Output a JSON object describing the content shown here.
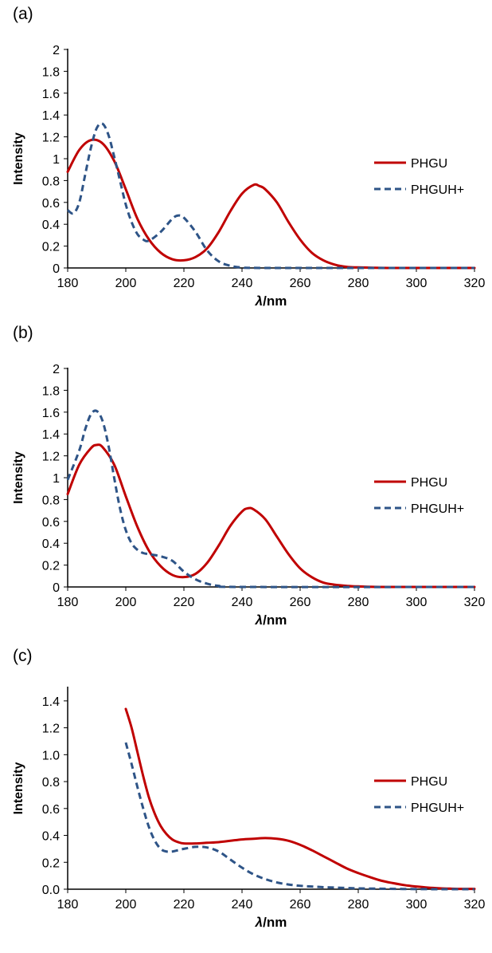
{
  "colors": {
    "phgu": "#c00000",
    "phguh": "#2e5487"
  },
  "chart_data": [
    {
      "panel_label": "(a)",
      "type": "line",
      "xlabel_italic": "λ",
      "xlabel_rest": "/nm",
      "ylabel": "Intensity",
      "xlim": [
        180,
        320
      ],
      "ylim": [
        0,
        2
      ],
      "xticks": [
        "180",
        "200",
        "220",
        "240",
        "260",
        "280",
        "300",
        "320"
      ],
      "yticks": [
        "0",
        "0.2",
        "0.4",
        "0.6",
        "0.8",
        "1",
        "1.2",
        "1.4",
        "1.6",
        "1.8",
        "2"
      ],
      "legend_position": "right",
      "series": [
        {
          "name": "PHGU",
          "style": "solid",
          "x": [
            180,
            184,
            188,
            192,
            196,
            200,
            204,
            208,
            212,
            216,
            220,
            224,
            228,
            232,
            236,
            240,
            244,
            246,
            248,
            252,
            256,
            260,
            264,
            268,
            272,
            276,
            280,
            290,
            300,
            320
          ],
          "y": [
            0.88,
            1.08,
            1.17,
            1.14,
            0.98,
            0.72,
            0.45,
            0.26,
            0.14,
            0.08,
            0.07,
            0.1,
            0.18,
            0.33,
            0.52,
            0.68,
            0.76,
            0.75,
            0.72,
            0.6,
            0.42,
            0.26,
            0.14,
            0.07,
            0.03,
            0.01,
            0.005,
            0,
            0,
            0
          ]
        },
        {
          "name": "PHGUH+",
          "style": "dashed",
          "x": [
            180,
            182,
            184,
            186,
            188,
            190,
            192,
            194,
            196,
            198,
            200,
            202,
            204,
            206,
            208,
            212,
            216,
            218,
            220,
            224,
            228,
            232,
            236,
            240,
            250,
            320
          ],
          "y": [
            0.53,
            0.5,
            0.6,
            0.85,
            1.1,
            1.28,
            1.32,
            1.22,
            1.02,
            0.8,
            0.58,
            0.42,
            0.31,
            0.26,
            0.25,
            0.33,
            0.45,
            0.48,
            0.46,
            0.33,
            0.16,
            0.06,
            0.02,
            0.005,
            0,
            0
          ]
        }
      ]
    },
    {
      "panel_label": "(b)",
      "type": "line",
      "xlabel_italic": "λ",
      "xlabel_rest": "/nm",
      "ylabel": "Intensity",
      "xlim": [
        180,
        320
      ],
      "ylim": [
        0,
        2
      ],
      "xticks": [
        "180",
        "200",
        "220",
        "240",
        "260",
        "280",
        "300",
        "320"
      ],
      "yticks": [
        "0",
        "0.2",
        "0.4",
        "0.6",
        "0.8",
        "1",
        "1.2",
        "1.4",
        "1.6",
        "1.8",
        "2"
      ],
      "legend_position": "right",
      "series": [
        {
          "name": "PHGU",
          "style": "solid",
          "x": [
            180,
            184,
            188,
            190,
            192,
            196,
            200,
            204,
            208,
            212,
            216,
            220,
            224,
            228,
            232,
            236,
            240,
            242,
            244,
            248,
            252,
            256,
            260,
            264,
            268,
            272,
            276,
            280,
            290,
            320
          ],
          "y": [
            0.85,
            1.12,
            1.27,
            1.3,
            1.28,
            1.12,
            0.83,
            0.55,
            0.33,
            0.19,
            0.11,
            0.09,
            0.12,
            0.22,
            0.38,
            0.56,
            0.69,
            0.72,
            0.71,
            0.62,
            0.46,
            0.3,
            0.17,
            0.09,
            0.04,
            0.02,
            0.01,
            0.005,
            0,
            0
          ]
        },
        {
          "name": "PHGUH+",
          "style": "dashed",
          "x": [
            180,
            184,
            186,
            188,
            190,
            192,
            194,
            196,
            198,
            200,
            202,
            204,
            206,
            208,
            212,
            216,
            220,
            224,
            228,
            232,
            240,
            320
          ],
          "y": [
            0.98,
            1.25,
            1.44,
            1.58,
            1.61,
            1.52,
            1.3,
            1.0,
            0.72,
            0.52,
            0.4,
            0.34,
            0.31,
            0.3,
            0.28,
            0.24,
            0.14,
            0.07,
            0.03,
            0.01,
            0,
            0
          ]
        }
      ]
    },
    {
      "panel_label": "(c)",
      "type": "line",
      "xlabel_italic": "λ",
      "xlabel_rest": "/nm",
      "ylabel": "Intensity",
      "xlim": [
        180,
        320
      ],
      "ylim": [
        0,
        1.5
      ],
      "xticks": [
        "180",
        "200",
        "220",
        "240",
        "260",
        "280",
        "300",
        "320"
      ],
      "yticks": [
        "0.0",
        "0.2",
        "0.4",
        "0.6",
        "0.8",
        "1.0",
        "1.2",
        "1.4"
      ],
      "legend_position": "right",
      "series": [
        {
          "name": "PHGU",
          "style": "solid",
          "x": [
            200,
            202,
            204,
            206,
            208,
            210,
            212,
            214,
            216,
            218,
            220,
            224,
            228,
            232,
            236,
            240,
            244,
            248,
            252,
            256,
            260,
            264,
            268,
            272,
            276,
            280,
            284,
            288,
            292,
            296,
            300,
            304,
            308,
            312,
            316,
            320
          ],
          "y": [
            1.34,
            1.2,
            1.02,
            0.84,
            0.68,
            0.56,
            0.47,
            0.41,
            0.37,
            0.35,
            0.34,
            0.34,
            0.345,
            0.35,
            0.36,
            0.37,
            0.375,
            0.38,
            0.375,
            0.36,
            0.33,
            0.29,
            0.245,
            0.2,
            0.155,
            0.12,
            0.09,
            0.063,
            0.045,
            0.03,
            0.02,
            0.012,
            0.007,
            0.004,
            0.002,
            0.002
          ]
        },
        {
          "name": "PHGUH+",
          "style": "dashed",
          "x": [
            200,
            202,
            204,
            206,
            208,
            210,
            212,
            214,
            216,
            218,
            220,
            224,
            228,
            232,
            236,
            240,
            244,
            248,
            252,
            256,
            260,
            264,
            268,
            272,
            276,
            280,
            290,
            300,
            310,
            320
          ],
          "y": [
            1.09,
            0.93,
            0.76,
            0.6,
            0.46,
            0.36,
            0.3,
            0.28,
            0.28,
            0.29,
            0.3,
            0.315,
            0.31,
            0.28,
            0.22,
            0.16,
            0.11,
            0.075,
            0.05,
            0.035,
            0.025,
            0.02,
            0.015,
            0.012,
            0.009,
            0.006,
            0.003,
            0.001,
            0,
            0
          ]
        }
      ]
    }
  ]
}
